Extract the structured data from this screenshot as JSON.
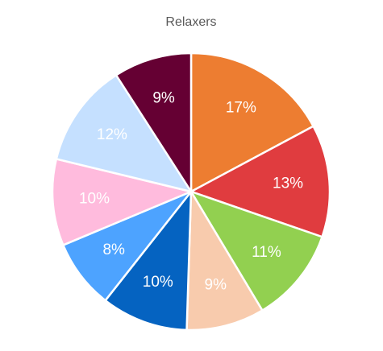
{
  "chart_data": {
    "type": "pie",
    "title": "Relaxers",
    "values": [
      17,
      13,
      11,
      9,
      10,
      8,
      10,
      12,
      9
    ],
    "value_labels": [
      "17%",
      "13%",
      "11%",
      "9%",
      "10%",
      "8%",
      "10%",
      "12%",
      "9%"
    ],
    "colors": [
      "#ED7D31",
      "#E03C3F",
      "#92D050",
      "#F8CBAD",
      "#0563C1",
      "#4DA3FF",
      "#FFBBDD",
      "#C5E0FF",
      "#650033"
    ]
  }
}
